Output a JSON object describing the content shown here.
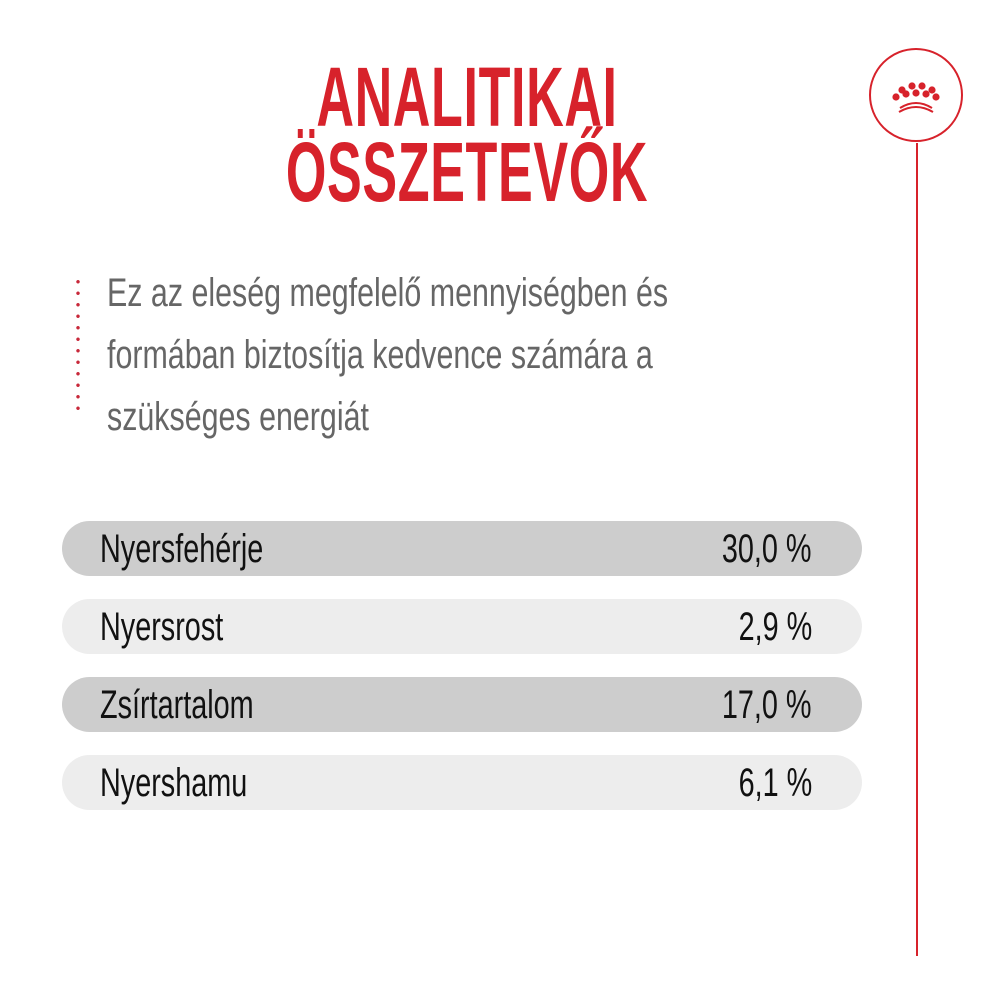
{
  "title": {
    "line1": "ANALITIKAI",
    "line2": "ÖSSZETEVŐK"
  },
  "description": {
    "lines": [
      "Ez az eleség megfelelő mennyiségben és",
      "formában biztosítja kedvence számára a",
      "szükséges energiát"
    ]
  },
  "nutrients": [
    {
      "label": "Nyersfehérje",
      "value": "30,0 %"
    },
    {
      "label": "Nyersrost",
      "value": "2,9 %"
    },
    {
      "label": "Zsírtartalom",
      "value": "17,0 %"
    },
    {
      "label": "Nyershamu",
      "value": "6,1 %"
    }
  ],
  "logo": {
    "icon": "crown-icon"
  },
  "colors": {
    "accent": "#d7222b",
    "row_dark": "#cdcdcd",
    "row_light": "#ededed",
    "text_gray": "#666666"
  }
}
